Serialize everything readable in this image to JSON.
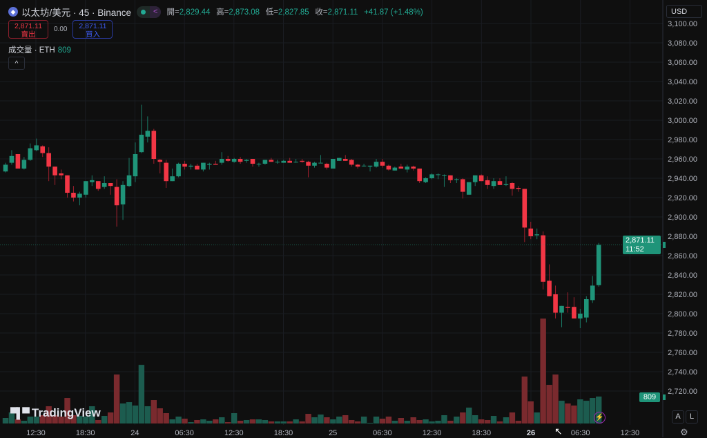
{
  "header": {
    "symbol": "以太坊/美元 · 45 · Binance",
    "icon": "ethereum-icon",
    "ohlc": [
      {
        "k": "開=",
        "v": "2,829.44"
      },
      {
        "k": "高=",
        "v": "2,873.08"
      },
      {
        "k": "低=",
        "v": "2,827.85"
      },
      {
        "k": "收=",
        "v": "2,871.11"
      }
    ],
    "change": "+41.87 (+1.48%)"
  },
  "trade": {
    "sell_price": "2,871.11",
    "sell_label": "賣出",
    "spread": "0.00",
    "buy_price": "2,871.11",
    "buy_label": "買入"
  },
  "volume": {
    "label": "成交量 · ETH",
    "value": "809"
  },
  "currency": "USD",
  "current": {
    "price": "2,871.11",
    "countdown": "11:52"
  },
  "volume_label": "809",
  "buttons": {
    "auto": "A",
    "log": "L"
  },
  "logo": "TradingView",
  "colors": {
    "up": "#1f9479",
    "down": "#f23645",
    "vol_up": "#1c5c4f",
    "vol_down": "#7a2a2e"
  },
  "chart_data": {
    "type": "candlestick",
    "interval_minutes": 45,
    "price_ticks": [
      "3,100.00",
      "3,080.00",
      "3,060.00",
      "3,040.00",
      "3,020.00",
      "3,000.00",
      "2,980.00",
      "2,960.00",
      "2,940.00",
      "2,920.00",
      "2,900.00",
      "2,880.00",
      "2,860.00",
      "2,840.00",
      "2,820.00",
      "2,800.00",
      "2,780.00",
      "2,760.00",
      "2,740.00",
      "2,720.00"
    ],
    "price_range": [
      2720,
      3100
    ],
    "time_ticks": [
      {
        "label": "12:30"
      },
      {
        "label": "18:30"
      },
      {
        "label": "24"
      },
      {
        "label": "06:30"
      },
      {
        "label": "12:30"
      },
      {
        "label": "18:30"
      },
      {
        "label": "25"
      },
      {
        "label": "06:30"
      },
      {
        "label": "12:30"
      },
      {
        "label": "18:30"
      },
      {
        "label": "26",
        "bold": true
      },
      {
        "label": "06:30"
      },
      {
        "label": "12:30"
      }
    ],
    "candles": [
      [
        2947,
        2956,
        2946,
        2954
      ],
      [
        2956,
        2969,
        2954,
        2963
      ],
      [
        2965,
        2965,
        2950,
        2950
      ],
      [
        2950,
        2962,
        2949,
        2959
      ],
      [
        2959,
        2976,
        2958,
        2971
      ],
      [
        2969,
        2981,
        2968,
        2974
      ],
      [
        2973,
        2974,
        2962,
        2966
      ],
      [
        2966,
        2972,
        2937,
        2952
      ],
      [
        2952,
        2952,
        2933,
        2943
      ],
      [
        2945,
        2949,
        2939,
        2943
      ],
      [
        2943,
        2943,
        2920,
        2925
      ],
      [
        2925,
        2932,
        2916,
        2920
      ],
      [
        2920,
        2926,
        2912,
        2924
      ],
      [
        2923,
        2937,
        2920,
        2937
      ],
      [
        2936,
        2943,
        2932,
        2938
      ],
      [
        2937,
        2937,
        2927,
        2929
      ],
      [
        2931,
        2942,
        2929,
        2935
      ],
      [
        2935,
        2935,
        2923,
        2932
      ],
      [
        2931,
        2939,
        2890,
        2912
      ],
      [
        2913,
        2937,
        2897,
        2933
      ],
      [
        2932,
        2961,
        2931,
        2943
      ],
      [
        2942,
        2977,
        2936,
        2965
      ],
      [
        2967,
        3016,
        2966,
        2985
      ],
      [
        2983,
        3004,
        2977,
        2989
      ],
      [
        2989,
        2991,
        2955,
        2960
      ],
      [
        2959,
        2960,
        2945,
        2957
      ],
      [
        2956,
        2959,
        2930,
        2937
      ],
      [
        2937,
        2950,
        2937,
        2942
      ],
      [
        2942,
        2956,
        2941,
        2955
      ],
      [
        2955,
        2958,
        2949,
        2952
      ],
      [
        2952,
        2955,
        2949,
        2953
      ],
      [
        2953,
        2955,
        2949,
        2949
      ],
      [
        2949,
        2956,
        2947,
        2956
      ],
      [
        2954,
        2956,
        2949,
        2955
      ],
      [
        2955,
        2958,
        2954,
        2954
      ],
      [
        2956,
        2967,
        2954,
        2960
      ],
      [
        2960,
        2963,
        2957,
        2958
      ],
      [
        2957,
        2961,
        2956,
        2960
      ],
      [
        2960,
        2962,
        2955,
        2957
      ],
      [
        2958,
        2960,
        2956,
        2959
      ],
      [
        2960,
        2960,
        2952,
        2955
      ],
      [
        2955,
        2956,
        2952,
        2955
      ],
      [
        2955,
        2959,
        2954,
        2959
      ],
      [
        2959,
        2961,
        2957,
        2957
      ],
      [
        2957,
        2959,
        2955,
        2957
      ],
      [
        2956,
        2959,
        2956,
        2958
      ],
      [
        2958,
        2961,
        2956,
        2956
      ],
      [
        2957,
        2960,
        2956,
        2957
      ],
      [
        2958,
        2960,
        2956,
        2957
      ],
      [
        2957,
        2958,
        2941,
        2953
      ],
      [
        2953,
        2957,
        2951,
        2956
      ],
      [
        2956,
        2964,
        2956,
        2956
      ],
      [
        2955,
        2956,
        2949,
        2951
      ],
      [
        2950,
        2960,
        2950,
        2960
      ],
      [
        2958,
        2961,
        2958,
        2961
      ],
      [
        2960,
        2964,
        2958,
        2958
      ],
      [
        2959,
        2960,
        2952,
        2954
      ],
      [
        2954,
        2955,
        2950,
        2952
      ],
      [
        2953,
        2955,
        2952,
        2953
      ],
      [
        2952,
        2953,
        2947,
        2953
      ],
      [
        2952,
        2960,
        2951,
        2957
      ],
      [
        2957,
        2960,
        2951,
        2953
      ],
      [
        2953,
        2954,
        2948,
        2949
      ],
      [
        2948,
        2952,
        2948,
        2951
      ],
      [
        2952,
        2955,
        2950,
        2950
      ],
      [
        2949,
        2954,
        2946,
        2952
      ],
      [
        2952,
        2953,
        2948,
        2950
      ],
      [
        2950,
        2950,
        2935,
        2937
      ],
      [
        2936,
        2941,
        2935,
        2940
      ],
      [
        2940,
        2945,
        2939,
        2944
      ],
      [
        2944,
        2945,
        2939,
        2944
      ],
      [
        2943,
        2944,
        2931,
        2943
      ],
      [
        2943,
        2943,
        2935,
        2938
      ],
      [
        2939,
        2940,
        2935,
        2939
      ],
      [
        2939,
        2940,
        2919,
        2926
      ],
      [
        2923,
        2936,
        2923,
        2936
      ],
      [
        2936,
        2943,
        2932,
        2943
      ],
      [
        2943,
        2944,
        2937,
        2937
      ],
      [
        2938,
        2942,
        2929,
        2933
      ],
      [
        2932,
        2940,
        2929,
        2937
      ],
      [
        2937,
        2940,
        2933,
        2933
      ],
      [
        2933,
        2942,
        2932,
        2934
      ],
      [
        2935,
        2936,
        2922,
        2929
      ],
      [
        2930,
        2932,
        2926,
        2929
      ],
      [
        2929,
        2929,
        2874,
        2889
      ],
      [
        2888,
        2895,
        2877,
        2880
      ],
      [
        2881,
        2888,
        2877,
        2882
      ],
      [
        2881,
        2885,
        2825,
        2833
      ],
      [
        2834,
        2851,
        2818,
        2818
      ],
      [
        2820,
        2829,
        2795,
        2801
      ],
      [
        2801,
        2808,
        2786,
        2808
      ],
      [
        2807,
        2822,
        2801,
        2806
      ],
      [
        2807,
        2817,
        2795,
        2795
      ],
      [
        2795,
        2805,
        2785,
        2800
      ],
      [
        2796,
        2818,
        2791,
        2815
      ],
      [
        2814,
        2839,
        2811,
        2829
      ],
      [
        2829.44,
        2873.08,
        2827.85,
        2871.11
      ]
    ],
    "volumes": [
      166,
      332,
      124,
      83,
      207,
      207,
      249,
      518,
      249,
      207,
      767,
      249,
      228,
      207,
      518,
      104,
      228,
      332,
      1470,
      601,
      642,
      539,
      1761,
      518,
      705,
      456,
      311,
      124,
      207,
      145,
      41,
      104,
      124,
      83,
      124,
      187,
      41,
      311,
      83,
      104,
      124,
      124,
      104,
      62,
      62,
      62,
      62,
      124,
      62,
      290,
      187,
      269,
      187,
      124,
      207,
      249,
      104,
      62,
      207,
      21,
      207,
      145,
      207,
      83,
      166,
      83,
      187,
      104,
      124,
      62,
      83,
      249,
      83,
      207,
      332,
      477,
      249,
      124,
      104,
      228,
      62,
      187,
      332,
      83,
      1409,
      664,
      332,
      3150,
      1161,
      1470,
      684,
      601,
      539,
      725,
      684,
      767,
      809
    ]
  }
}
